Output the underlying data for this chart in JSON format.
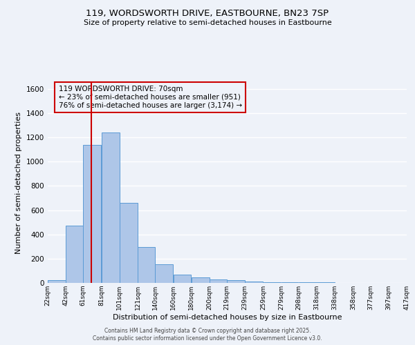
{
  "title": "119, WORDSWORTH DRIVE, EASTBOURNE, BN23 7SP",
  "subtitle": "Size of property relative to semi-detached houses in Eastbourne",
  "xlabel": "Distribution of semi-detached houses by size in Eastbourne",
  "ylabel": "Number of semi-detached properties",
  "bar_left_edges": [
    22,
    42,
    61,
    81,
    101,
    121,
    140,
    160,
    180,
    200,
    219,
    239,
    259,
    279,
    298,
    318,
    338,
    358,
    377,
    397
  ],
  "bar_widths": [
    20,
    19,
    20,
    20,
    20,
    19,
    20,
    20,
    20,
    19,
    20,
    20,
    20,
    19,
    20,
    20,
    20,
    19,
    20,
    20
  ],
  "bar_heights": [
    25,
    470,
    1140,
    1240,
    660,
    295,
    155,
    70,
    45,
    30,
    20,
    10,
    5,
    5,
    5,
    5,
    2,
    2,
    2,
    2
  ],
  "bar_color": "#aec6e8",
  "bar_edge_color": "#5b9bd5",
  "tick_labels": [
    "22sqm",
    "42sqm",
    "61sqm",
    "81sqm",
    "101sqm",
    "121sqm",
    "140sqm",
    "160sqm",
    "180sqm",
    "200sqm",
    "219sqm",
    "239sqm",
    "259sqm",
    "279sqm",
    "298sqm",
    "318sqm",
    "338sqm",
    "358sqm",
    "377sqm",
    "397sqm",
    "417sqm"
  ],
  "tick_positions": [
    22,
    42,
    61,
    81,
    101,
    121,
    140,
    160,
    180,
    200,
    219,
    239,
    259,
    279,
    298,
    318,
    338,
    358,
    377,
    397,
    417
  ],
  "property_size": 70,
  "red_line_color": "#cc0000",
  "annotation_title": "119 WORDSWORTH DRIVE: 70sqm",
  "annotation_line1": "← 23% of semi-detached houses are smaller (951)",
  "annotation_line2": "76% of semi-detached houses are larger (3,174) →",
  "annotation_box_color": "#cc0000",
  "ylim": [
    0,
    1650
  ],
  "yticks": [
    0,
    200,
    400,
    600,
    800,
    1000,
    1200,
    1400,
    1600
  ],
  "bg_color": "#eef2f9",
  "grid_color": "#ffffff",
  "footnote1": "Contains HM Land Registry data © Crown copyright and database right 2025.",
  "footnote2": "Contains public sector information licensed under the Open Government Licence v3.0."
}
